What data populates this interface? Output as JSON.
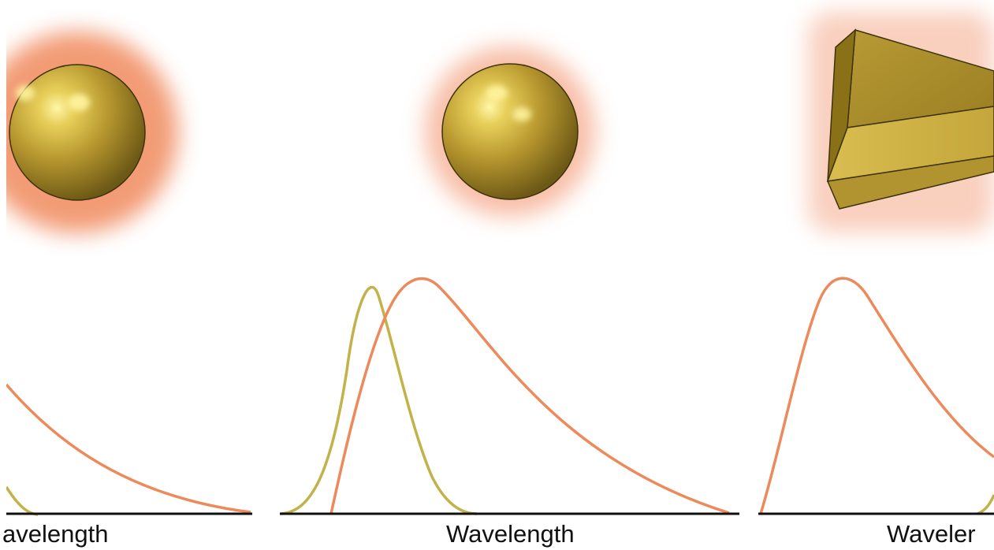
{
  "panels": [
    {
      "axis_label": "Wavelength",
      "particle": "large-sphere",
      "visible_label": "avelength"
    },
    {
      "axis_label": "Wavelength",
      "particle": "small-sphere"
    },
    {
      "axis_label": "Wavelength",
      "particle": "nanoprism",
      "visible_label": "Waveler"
    }
  ],
  "colors": {
    "gold": "#c2a23a",
    "glow": "#f08a5d",
    "absorption_curve": "#c2b24a",
    "scattering_curve": "#ec8a5c",
    "axis": "#111111"
  }
}
